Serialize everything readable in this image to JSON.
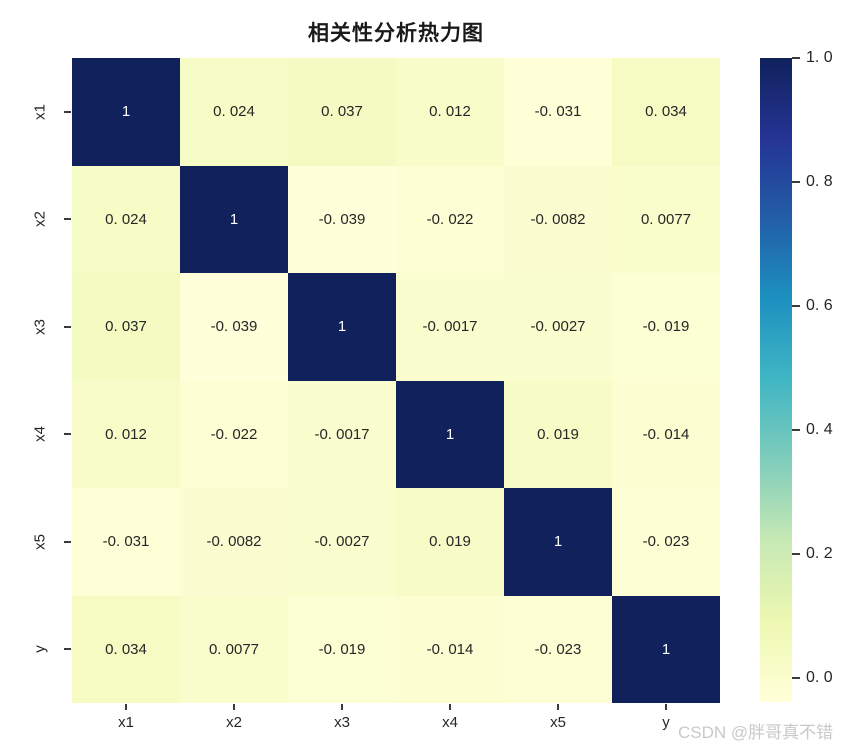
{
  "page": {
    "background": "#ffffff"
  },
  "chart_data": {
    "type": "heatmap",
    "title": "相关性分析热力图",
    "categories": [
      "x1",
      "x2",
      "x3",
      "x4",
      "x5",
      "y"
    ],
    "matrix": [
      [
        1,
        0.024,
        0.037,
        0.012,
        -0.031,
        0.034
      ],
      [
        0.024,
        1,
        -0.039,
        -0.022,
        -0.0082,
        0.0077
      ],
      [
        0.037,
        -0.039,
        1,
        -0.0017,
        -0.0027,
        -0.019
      ],
      [
        0.012,
        -0.022,
        -0.0017,
        1,
        0.019,
        -0.014
      ],
      [
        -0.031,
        -0.0082,
        -0.0027,
        0.019,
        1,
        -0.023
      ],
      [
        0.034,
        0.0077,
        -0.019,
        -0.014,
        -0.023,
        1
      ]
    ],
    "cell_labels": [
      [
        "1",
        "0. 024",
        "0. 037",
        "0. 012",
        "-0. 031",
        "0. 034"
      ],
      [
        "0. 024",
        "1",
        "-0. 039",
        "-0. 022",
        "-0. 0082",
        "0. 0077"
      ],
      [
        "0. 037",
        "-0. 039",
        "1",
        "-0. 0017",
        "-0. 0027",
        "-0. 019"
      ],
      [
        "0. 012",
        "-0. 022",
        "-0. 0017",
        "1",
        "0. 019",
        "-0. 014"
      ],
      [
        "-0. 031",
        "-0. 0082",
        "-0. 0027",
        "0. 019",
        "1",
        "-0. 023"
      ],
      [
        "0. 034",
        "0. 0077",
        "-0. 019",
        "-0. 014",
        "-0. 023",
        "1"
      ]
    ],
    "vmin": -0.039,
    "vmax": 1.0,
    "grid": false,
    "legend_position": "right-colorbar",
    "colormap": {
      "name": "YlGnBu",
      "stops": [
        "#ffffd9",
        "#edf8b1",
        "#c7e9b4",
        "#7fcdbb",
        "#41b6c4",
        "#1d91c0",
        "#225ea8",
        "#253494",
        "#10215c"
      ]
    },
    "colorbar": {
      "ticks": [
        {
          "value": 1.0,
          "label": "1. 0"
        },
        {
          "value": 0.8,
          "label": "0. 8"
        },
        {
          "value": 0.6,
          "label": "0. 6"
        },
        {
          "value": 0.4,
          "label": "0. 4"
        },
        {
          "value": 0.2,
          "label": "0. 2"
        },
        {
          "value": 0.0,
          "label": "0. 0"
        }
      ]
    },
    "text_color": "#262626",
    "annot_light_color": "#ffffff"
  },
  "watermark": {
    "text": "CSDN @胖哥真不错",
    "color": "#c9c9c9"
  }
}
